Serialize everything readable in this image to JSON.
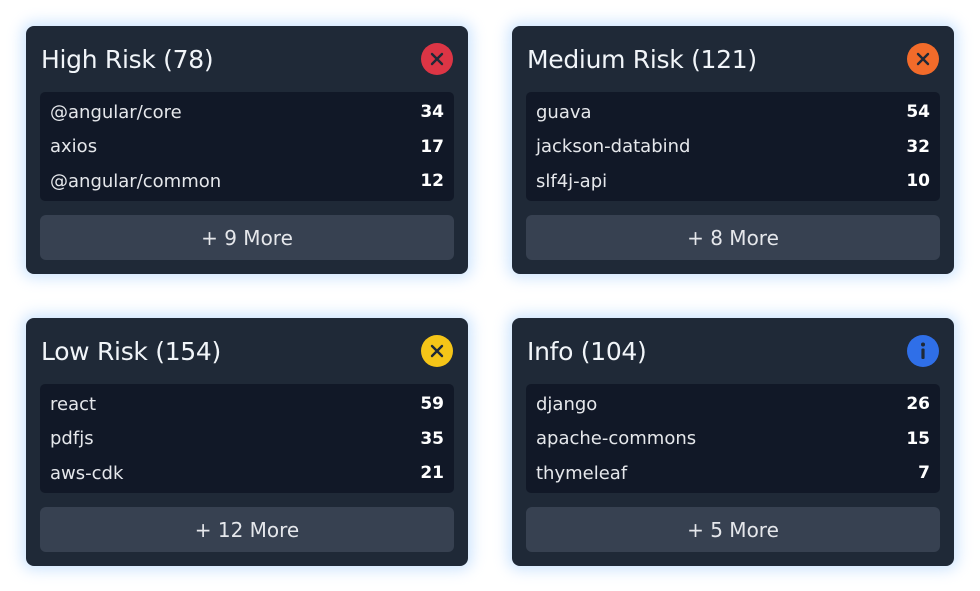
{
  "cards": [
    {
      "title": "High Risk (78)",
      "icon": "close-icon",
      "icon_color": "#dc3545",
      "items": [
        {
          "name": "@angular/core",
          "count": "34"
        },
        {
          "name": "axios",
          "count": "17"
        },
        {
          "name": "@angular/common",
          "count": "12"
        }
      ],
      "more_label": "+ 9 More"
    },
    {
      "title": "Medium Risk (121)",
      "icon": "close-icon",
      "icon_color": "#f26b2a",
      "items": [
        {
          "name": "guava",
          "count": "54"
        },
        {
          "name": "jackson-databind",
          "count": "32"
        },
        {
          "name": "slf4j-api",
          "count": "10"
        }
      ],
      "more_label": "+ 8 More"
    },
    {
      "title": "Low Risk (154)",
      "icon": "close-icon",
      "icon_color": "#f5c518",
      "items": [
        {
          "name": "react",
          "count": "59"
        },
        {
          "name": "pdfjs",
          "count": "35"
        },
        {
          "name": "aws-cdk",
          "count": "21"
        }
      ],
      "more_label": "+ 12 More"
    },
    {
      "title": "Info (104)",
      "icon": "info-icon",
      "icon_color": "#2f6fe8",
      "items": [
        {
          "name": "django",
          "count": "26"
        },
        {
          "name": "apache-commons",
          "count": "15"
        },
        {
          "name": "thymeleaf",
          "count": "7"
        }
      ],
      "more_label": "+ 5 More"
    }
  ]
}
